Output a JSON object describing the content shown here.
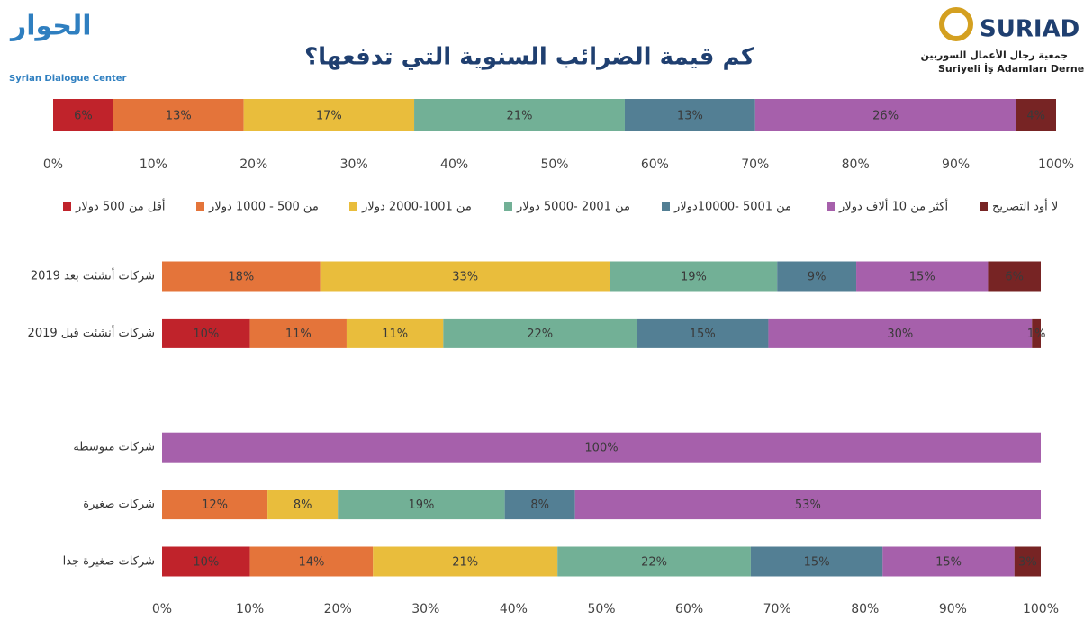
{
  "header": {
    "left_logo": "Syrian Dialogue Center",
    "right_logo_name": "SURIAD",
    "right_logo_ar": "جمعية رجال الأعمال السوريين",
    "right_logo_tr": "Suriyeli İş Adamları Derneği"
  },
  "chart_data": [
    {
      "type": "stacked-bar",
      "orientation": "horizontal",
      "title": "كم قيمة الضرائب السنوية التي تدفعها؟",
      "categories": [
        null
      ],
      "series": [
        {
          "name": "أقل من 500 دولار",
          "color": "#c0232b",
          "values": [
            6
          ],
          "value_labels": [
            "6%"
          ]
        },
        {
          "name": "من 500 - 1000 دولار",
          "color": "#e4743a",
          "values": [
            13
          ],
          "value_labels": [
            "13%"
          ]
        },
        {
          "name": "من 1001-2000 دولار",
          "color": "#e9bd3c",
          "values": [
            17
          ],
          "value_labels": [
            "17%"
          ]
        },
        {
          "name": "من 2001 -5000 دولار",
          "color": "#72b096",
          "values": [
            21
          ],
          "value_labels": [
            "21%"
          ]
        },
        {
          "name": "من 5001 -10000دولار",
          "color": "#537f94",
          "values": [
            13
          ],
          "value_labels": [
            "13%"
          ]
        },
        {
          "name": "أكثر من 10 ألاف دولار",
          "color": "#a660ab",
          "values": [
            26
          ],
          "value_labels": [
            "26%"
          ]
        },
        {
          "name": "لا أود التصريح",
          "color": "#772424",
          "values": [
            4
          ],
          "value_labels": [
            "4%"
          ]
        }
      ],
      "xlim": [
        0,
        100
      ],
      "xticks": [
        {
          "value": 0,
          "label": "0%"
        },
        {
          "value": 10,
          "label": "10%"
        },
        {
          "value": 20,
          "label": "20%"
        },
        {
          "value": 30,
          "label": "30%"
        },
        {
          "value": 40,
          "label": "40%"
        },
        {
          "value": 50,
          "label": "50%"
        },
        {
          "value": 60,
          "label": "60%"
        },
        {
          "value": 70,
          "label": "70%"
        },
        {
          "value": 80,
          "label": "80%"
        },
        {
          "value": 90,
          "label": "90%"
        },
        {
          "value": 100,
          "label": "100%"
        }
      ],
      "legend": "bottom"
    },
    {
      "type": "stacked-bar",
      "orientation": "horizontal",
      "categories": [
        "شركات أنشئت بعد 2019",
        "شركات أنشئت قبل 2019",
        null,
        "شركات متوسطة",
        "شركات صغيرة",
        "شركات صغيرة جدا"
      ],
      "series": [
        {
          "color": "#c0232b",
          "values": [
            null,
            10,
            null,
            null,
            null,
            10
          ],
          "value_labels": [
            null,
            "10%",
            null,
            null,
            null,
            "10%"
          ]
        },
        {
          "color": "#e4743a",
          "values": [
            18,
            11,
            null,
            null,
            12,
            14
          ],
          "value_labels": [
            "18%",
            "11%",
            null,
            null,
            "12%",
            "14%"
          ]
        },
        {
          "color": "#e9bd3c",
          "values": [
            33,
            11,
            null,
            null,
            8,
            21
          ],
          "value_labels": [
            "33%",
            "11%",
            null,
            null,
            "8%",
            "21%"
          ]
        },
        {
          "color": "#72b096",
          "values": [
            19,
            22,
            null,
            null,
            19,
            22
          ],
          "value_labels": [
            "19%",
            "22%",
            null,
            null,
            "19%",
            "22%"
          ]
        },
        {
          "color": "#537f94",
          "values": [
            9,
            15,
            null,
            null,
            8,
            15
          ],
          "value_labels": [
            "9%",
            "15%",
            null,
            null,
            "8%",
            "15%"
          ]
        },
        {
          "color": "#a660ab",
          "values": [
            15,
            30,
            null,
            100,
            53,
            15
          ],
          "value_labels": [
            "15%",
            "30%",
            null,
            "100%",
            "53%",
            "15%"
          ]
        },
        {
          "color": "#772424",
          "values": [
            6,
            1,
            null,
            null,
            null,
            3
          ],
          "value_labels": [
            "6%",
            "1%",
            null,
            null,
            null,
            "3%"
          ]
        }
      ],
      "xlim": [
        0,
        100
      ],
      "xticks": [
        {
          "value": 0,
          "label": "0%"
        },
        {
          "value": 10,
          "label": "10%"
        },
        {
          "value": 20,
          "label": "20%"
        },
        {
          "value": 30,
          "label": "30%"
        },
        {
          "value": 40,
          "label": "40%"
        },
        {
          "value": 50,
          "label": "50%"
        },
        {
          "value": 60,
          "label": "60%"
        },
        {
          "value": 70,
          "label": "70%"
        },
        {
          "value": 80,
          "label": "80%"
        },
        {
          "value": 90,
          "label": "90%"
        },
        {
          "value": 100,
          "label": "100%"
        }
      ]
    }
  ]
}
